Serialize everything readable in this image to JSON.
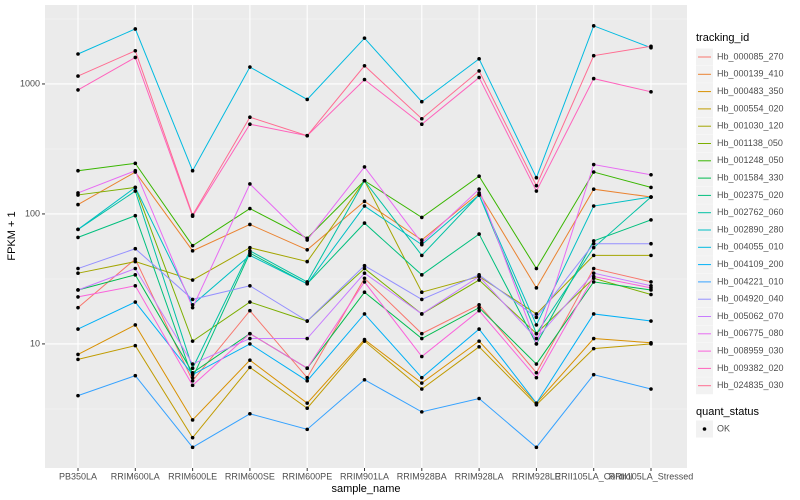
{
  "chart_data": {
    "type": "line",
    "x_label": "sample_name",
    "y_label": "FPKM + 1",
    "log_y": true,
    "grid": true,
    "legend": "right",
    "legend_title": "tracking_id",
    "legend2_title": "quant_status",
    "legend2_entries": [
      "OK"
    ],
    "categories": [
      "PB350LA",
      "RRIM600LA",
      "RRIM600LE",
      "RRIM600SE",
      "RRIM600PE",
      "RRIM901LA",
      "RRIM928BA",
      "RRIM928LA",
      "RRIM928LE",
      "RRII105LA_Control",
      "RRII105LA_Stressed"
    ],
    "ylim": [
      1.11,
      4050
    ],
    "yticks": [
      10,
      100,
      1000
    ],
    "series": [
      {
        "name": "Hb_000085_270",
        "color": "#F8766D",
        "values": [
          19,
          45,
          5.2,
          18,
          5.5,
          32,
          12,
          20,
          6,
          38,
          30
        ]
      },
      {
        "name": "Hb_000139_410",
        "color": "#EA8331",
        "values": [
          118,
          210,
          52,
          83,
          53,
          125,
          63,
          145,
          27,
          155,
          135
        ]
      },
      {
        "name": "Hb_000483_350",
        "color": "#D89000",
        "values": [
          8.3,
          14,
          2.6,
          7.5,
          3.5,
          10.8,
          5,
          10.5,
          3.5,
          11,
          10.2
        ]
      },
      {
        "name": "Hb_000554_020",
        "color": "#C09B00",
        "values": [
          7.6,
          9.7,
          1.9,
          6.6,
          3.2,
          10.5,
          4.5,
          9.5,
          3.4,
          9.2,
          10
        ]
      },
      {
        "name": "Hb_001030_120",
        "color": "#A3A500",
        "values": [
          35,
          43,
          31,
          55,
          43,
          180,
          25,
          33,
          17,
          48,
          48
        ]
      },
      {
        "name": "Hb_001138_050",
        "color": "#7CAE00",
        "values": [
          140,
          160,
          10.5,
          21,
          15,
          38,
          17,
          31,
          12,
          32,
          24
        ]
      },
      {
        "name": "Hb_001248_050",
        "color": "#39B600",
        "values": [
          215,
          245,
          57,
          110,
          65,
          180,
          94,
          195,
          38,
          210,
          160
        ]
      },
      {
        "name": "Hb_001584_330",
        "color": "#00BB4E",
        "values": [
          26,
          34,
          6,
          12,
          6.5,
          25,
          11,
          19,
          7,
          30,
          26
        ]
      },
      {
        "name": "Hb_002375_020",
        "color": "#00BF7D",
        "values": [
          66,
          97,
          5.5,
          50,
          29,
          85,
          34,
          70,
          10,
          62,
          90
        ]
      },
      {
        "name": "Hb_002762_060",
        "color": "#00C1A3",
        "values": [
          76,
          150,
          6.5,
          52,
          30,
          180,
          48,
          140,
          12,
          55,
          135
        ]
      },
      {
        "name": "Hb_002890_280",
        "color": "#00BFC4",
        "values": [
          76,
          160,
          20,
          48,
          29,
          115,
          58,
          140,
          14,
          115,
          135
        ]
      },
      {
        "name": "Hb_004055_010",
        "color": "#00BAE0",
        "values": [
          1700,
          2650,
          215,
          1350,
          760,
          2250,
          730,
          1560,
          190,
          2800,
          1900
        ]
      },
      {
        "name": "Hb_004109_200",
        "color": "#00B0F6",
        "values": [
          13,
          21,
          5.8,
          10,
          5.2,
          17,
          5.5,
          13,
          3.5,
          17,
          15
        ]
      },
      {
        "name": "Hb_004221_010",
        "color": "#35A2FF",
        "values": [
          4,
          5.7,
          1.6,
          2.9,
          2.2,
          5.3,
          3,
          3.8,
          1.6,
          5.8,
          4.5
        ]
      },
      {
        "name": "Hb_004920_040",
        "color": "#9590FF",
        "values": [
          38,
          54,
          22,
          28,
          15,
          40,
          22,
          34,
          16,
          59,
          59
        ]
      },
      {
        "name": "Hb_005062_070",
        "color": "#C77CFF",
        "values": [
          26,
          38,
          7,
          11,
          11,
          35,
          17,
          33,
          11,
          35,
          28
        ]
      },
      {
        "name": "Hb_006775_080",
        "color": "#E76BF3",
        "values": [
          145,
          215,
          19,
          170,
          63,
          230,
          60,
          155,
          10,
          240,
          200
        ]
      },
      {
        "name": "Hb_008959_030",
        "color": "#FA62DB",
        "values": [
          23,
          28,
          4.8,
          12,
          6.5,
          30,
          8,
          18,
          5.5,
          33,
          27
        ]
      },
      {
        "name": "Hb_009382_020",
        "color": "#FF62BC",
        "values": [
          900,
          1600,
          96,
          490,
          400,
          1080,
          490,
          1120,
          150,
          1100,
          870
        ]
      },
      {
        "name": "Hb_024835_030",
        "color": "#FF6C91",
        "values": [
          1150,
          1800,
          98,
          555,
          400,
          1380,
          540,
          1260,
          165,
          1650,
          1950
        ]
      }
    ]
  }
}
